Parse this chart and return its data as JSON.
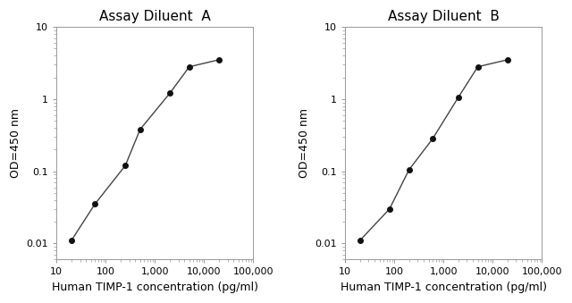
{
  "panel_A": {
    "title": "Assay Diluent  A",
    "x": [
      20,
      60,
      250,
      500,
      2000,
      5000,
      20000
    ],
    "y": [
      0.011,
      0.035,
      0.12,
      0.38,
      1.2,
      2.8,
      3.5
    ]
  },
  "panel_B": {
    "title": "Assay Diluent  B",
    "x": [
      20,
      80,
      200,
      600,
      2000,
      5000,
      20000
    ],
    "y": [
      0.011,
      0.03,
      0.105,
      0.28,
      1.05,
      2.8,
      3.5
    ]
  },
  "xlabel": "Human TIMP-1 concentration (pg/ml)",
  "ylabel": "OD=450 nm",
  "xlim": [
    10,
    100000
  ],
  "ylim": [
    0.006,
    10
  ],
  "xtick_locs": [
    10,
    100,
    1000,
    10000,
    100000
  ],
  "xtick_labels": [
    "10",
    "100",
    "1,000",
    "10,000",
    "100,000"
  ],
  "ytick_locs": [
    0.01,
    0.1,
    1,
    10
  ],
  "ytick_labels": [
    "0.01",
    "0.1",
    "1",
    "10"
  ],
  "line_color": "#444444",
  "marker": "o",
  "marker_size": 4,
  "marker_color": "#111111",
  "bg_color": "#ffffff",
  "title_fontsize": 11,
  "label_fontsize": 9,
  "tick_fontsize": 8
}
